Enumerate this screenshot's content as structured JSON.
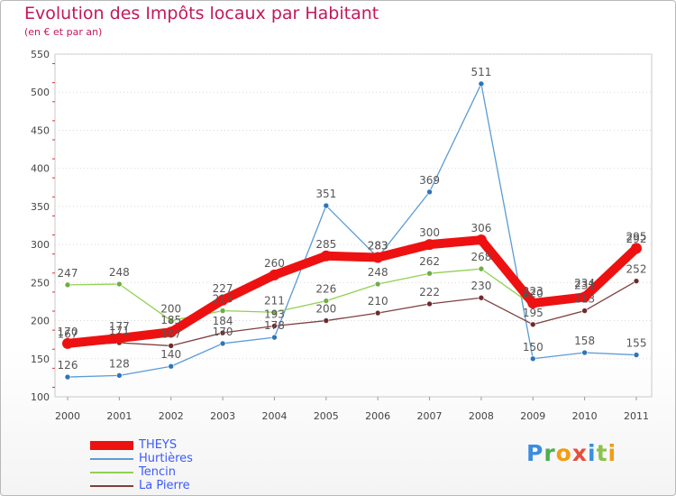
{
  "header": {
    "title": "Evolution des Impôts locaux par Habitant",
    "subtitle": "(en € et par an)"
  },
  "brand": {
    "name": "Proxiti",
    "letters": [
      "P",
      "r",
      "o",
      "x",
      "i",
      "t",
      "i"
    ],
    "colors": [
      "#3c8dde",
      "#4caf50",
      "#f39c12",
      "#e74c3c",
      "#3c8dde",
      "#8bc34a",
      "#f39c12"
    ]
  },
  "chart_data": {
    "type": "line",
    "title": "Evolution des Impôts locaux par Habitant",
    "subtitle": "(en € et par an)",
    "xlabel": "",
    "ylabel": "",
    "ylim": [
      100,
      550
    ],
    "y_ticks": [
      100,
      150,
      200,
      250,
      300,
      350,
      400,
      450,
      500,
      550
    ],
    "x_tick_labels": [
      "2000",
      "2001",
      "2002",
      "2003",
      "2004",
      "2005",
      "2006",
      "2007",
      "2008",
      "2009",
      "2010",
      "2011"
    ],
    "legend_position": "bottom-left",
    "series": [
      {
        "name": "Hurtières",
        "color": "#5b9bd5",
        "point_color": "#2e75b6",
        "values": [
          126,
          128,
          140,
          170,
          178,
          351,
          283,
          369,
          511,
          150,
          158,
          155
        ],
        "labels": [
          "126",
          "128",
          "140",
          "170",
          "178",
          "351",
          "283",
          "369",
          "511",
          "150",
          "158",
          "155"
        ]
      },
      {
        "name": "Tencin",
        "color": "#92d050",
        "point_color": "#70ad47",
        "values": [
          247,
          248,
          200,
          213,
          211,
          226,
          248,
          262,
          268,
          220,
          234,
          292
        ],
        "labels": [
          "247",
          "248",
          "200",
          "213",
          "211",
          "226",
          "248",
          "262",
          "268",
          "220",
          "234",
          "292"
        ]
      },
      {
        "name": "La Pierre",
        "color": "#7f3f3f",
        "point_color": "#6d2b2b",
        "values": [
          167,
          171,
          167,
          184,
          193,
          200,
          210,
          222,
          230,
          195,
          213,
          252
        ],
        "labels": [
          "167",
          "171",
          "167",
          "184",
          "193",
          "200",
          "210",
          "222",
          "230",
          "195",
          "213",
          "252"
        ]
      },
      {
        "name": "THEYS",
        "color": "#ee1111",
        "point_color": "#ee1111",
        "values": [
          170,
          177,
          185,
          227,
          260,
          285,
          283,
          300,
          306,
          223,
          231,
          295
        ],
        "labels": [
          "170",
          "177",
          "185",
          "227",
          "260",
          "285",
          "283",
          "300",
          "306",
          "223",
          "231",
          "295"
        ]
      }
    ]
  },
  "legend": {
    "items": [
      {
        "label": "THEYS",
        "color": "#ee1111",
        "thickness": 10
      },
      {
        "label": "Hurtières",
        "color": "#5b9bd5",
        "thickness": 2
      },
      {
        "label": "Tencin",
        "color": "#92d050",
        "thickness": 2
      },
      {
        "label": "La Pierre",
        "color": "#7f3f3f",
        "thickness": 2
      }
    ]
  }
}
